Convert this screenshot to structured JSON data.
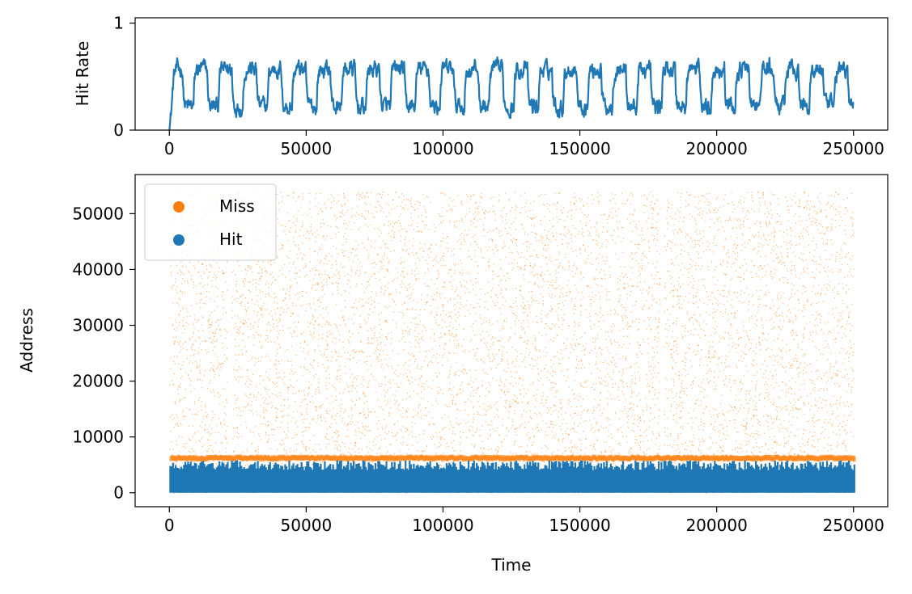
{
  "chart_data": [
    {
      "type": "line",
      "title": "",
      "xlabel": "",
      "ylabel": "Hit Rate",
      "xlim": [
        -12500,
        262500
      ],
      "ylim": [
        0,
        1.05
      ],
      "xticks": [
        0,
        50000,
        100000,
        150000,
        200000,
        250000
      ],
      "xtick_labels": [
        "0",
        "50000",
        "100000",
        "150000",
        "200000",
        "250000"
      ],
      "yticks": [
        0,
        1
      ],
      "ytick_labels": [
        "0",
        "1"
      ],
      "grid": false,
      "series": [
        {
          "color": "#1f77b4",
          "description": "noisy square-wave hit rate alternating between ~0.2 and ~0.6, period ~9000 steps",
          "start": 0,
          "end": 250000,
          "period": 9000,
          "high": 0.57,
          "low": 0.22,
          "initial": 0.0
        }
      ]
    },
    {
      "type": "scatter",
      "title": "",
      "xlabel": "Time",
      "ylabel": "Address",
      "xlim": [
        -12500,
        262500
      ],
      "ylim": [
        -2500,
        57000
      ],
      "xticks": [
        0,
        50000,
        100000,
        150000,
        200000,
        250000
      ],
      "xtick_labels": [
        "0",
        "50000",
        "100000",
        "150000",
        "200000",
        "250000"
      ],
      "yticks": [
        0,
        10000,
        20000,
        30000,
        40000,
        50000
      ],
      "ytick_labels": [
        "0",
        "10000",
        "20000",
        "30000",
        "40000",
        "50000"
      ],
      "grid": false,
      "legend": {
        "placement": "upper-left"
      },
      "series": [
        {
          "name": "Miss",
          "color": "#ff7f0e",
          "address_range": [
            0,
            54000
          ],
          "band_address": 6200,
          "x_range": [
            0,
            250000
          ]
        },
        {
          "name": "Hit",
          "color": "#1f77b4",
          "address_range": [
            0,
            5800
          ],
          "x_range": [
            0,
            250000
          ]
        }
      ]
    }
  ]
}
